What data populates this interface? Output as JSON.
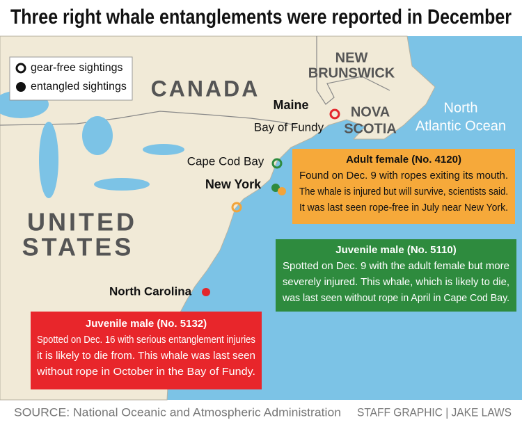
{
  "title": "Three right whale entanglements were reported in December",
  "legend": {
    "gear_free": "gear-free sightings",
    "entangled": "entangled sightings"
  },
  "places": {
    "canada": "CANADA",
    "new_brunswick": [
      "NEW",
      "BRUNSWICK"
    ],
    "nova_scotia": [
      "NOVA",
      "SCOTIA"
    ],
    "ocean": [
      "North",
      "Atlantic Ocean"
    ],
    "maine": "Maine",
    "bay_of_fundy": "Bay of Fundy",
    "cape_cod_bay": "Cape Cod Bay",
    "new_york": "New York",
    "united_states": [
      "UNITED",
      "STATES"
    ],
    "north_carolina": "North Carolina"
  },
  "whales": [
    {
      "title": "Adult female (No. 4120)",
      "lines": [
        "Found on Dec. 9 with ropes exiting its mouth.",
        "The whale is injured but will survive, scientists said.",
        "It was last seen rope-free in July near New York."
      ]
    },
    {
      "title": "Juvenile male (No. 5110)",
      "lines": [
        "Spotted on Dec. 9 with the adult female but more",
        "severely injured. This whale, which is likely to die,",
        "was last seen without rope in April in Cape Cod Bay."
      ]
    },
    {
      "title": "Juvenile male (No. 5132)",
      "lines": [
        "Spotted on Dec. 16 with serious entanglement injuries",
        "it is likely to die from. This whale was last seen",
        "without rope in October in the Bay of Fundy."
      ]
    }
  ],
  "footer": {
    "source": "SOURCE: National Oceanic and Atmospheric Administration",
    "credit": "STAFF GRAPHIC | JAKE LAWS"
  }
}
